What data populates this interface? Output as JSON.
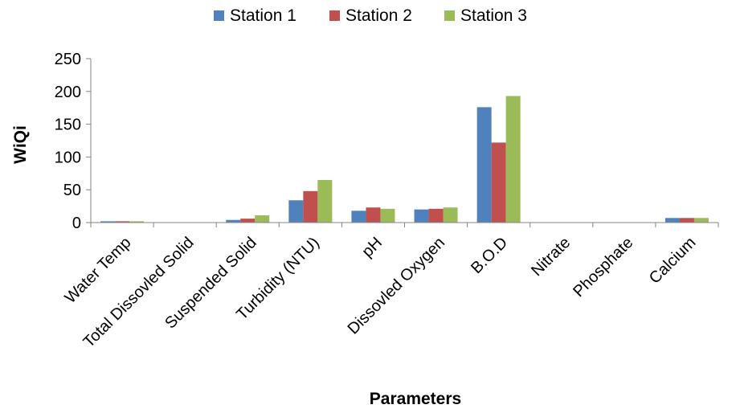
{
  "chart_data": {
    "type": "bar",
    "title": "",
    "xlabel": "Parameters",
    "ylabel": "WiQi",
    "ylim": [
      0,
      250
    ],
    "yticks": [
      0,
      50,
      100,
      150,
      200,
      250
    ],
    "grid": false,
    "legend_position": "top",
    "categories": [
      "Water Temp",
      "Total Dissovled Solid",
      "Suspended Solid",
      "Turbidity (NTU)",
      "pH",
      "Dissovled Oxygen",
      "B.O.D",
      "Nitrate",
      "Phosphate",
      "Calcium"
    ],
    "series": [
      {
        "name": "Station 1",
        "color": "#4F81BD",
        "values": [
          2,
          0,
          4,
          34,
          18,
          20,
          176,
          0,
          0,
          7
        ]
      },
      {
        "name": "Station 2",
        "color": "#C0504D",
        "values": [
          2,
          0,
          6,
          48,
          23,
          21,
          122,
          0,
          0,
          7
        ]
      },
      {
        "name": "Station 3",
        "color": "#9BBB59",
        "values": [
          2,
          0,
          11,
          65,
          21,
          23,
          193,
          0,
          0,
          7
        ]
      }
    ]
  }
}
